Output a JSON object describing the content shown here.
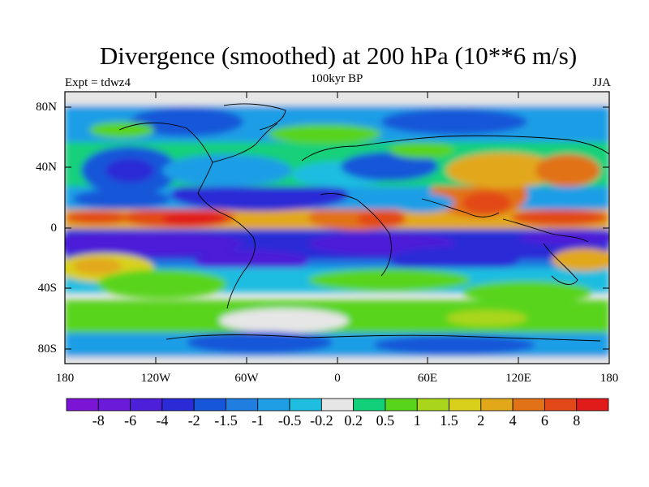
{
  "header": {
    "title": "Divergence (smoothed) at 200 hPa (10**6 m/s)",
    "left_label": "Expt = tdwz4",
    "center_label": "100kyr BP",
    "right_label": "JJA"
  },
  "axes": {
    "y_ticks": [
      "80N",
      "40N",
      "0",
      "40S",
      "80S"
    ],
    "x_ticks": [
      "180",
      "120W",
      "60W",
      "0",
      "60E",
      "120E",
      "180"
    ]
  },
  "colorbar": {
    "colors": [
      "#7b14d4",
      "#6a1ad8",
      "#4d1fd8",
      "#2a2ad6",
      "#1656d8",
      "#1f7ee0",
      "#1f9ee6",
      "#1fbde0",
      "#e6e6e6",
      "#12d07a",
      "#58d41c",
      "#a9d61a",
      "#d8d01a",
      "#e2a81a",
      "#e27218",
      "#e24818",
      "#e11a1a"
    ],
    "labels": [
      "-8",
      "-6",
      "-4",
      "-2",
      "-1.5",
      "-1",
      "-0.5",
      "-0.2",
      "0.2",
      "0.5",
      "1",
      "1.5",
      "2",
      "4",
      "6",
      "8"
    ]
  },
  "legend_colors": {
    "neutral": "#e6e6e6",
    "strong_negative": "#4d1fd8",
    "strong_positive": "#e11a1a"
  }
}
